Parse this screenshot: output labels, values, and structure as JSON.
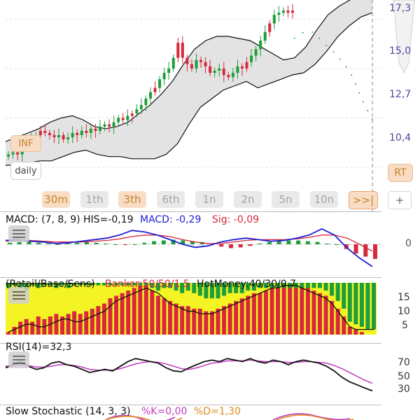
{
  "price_axis": {
    "ticks": [
      "17,3",
      "15,0",
      "12,7",
      "10,4"
    ]
  },
  "side_buttons": {
    "inf": "INF",
    "daily": "daily",
    "rt": "RT"
  },
  "periods": [
    {
      "label": "30m",
      "active": true
    },
    {
      "label": "1th",
      "active": false
    },
    {
      "label": "3th",
      "active": true
    },
    {
      "label": "6th",
      "active": false
    },
    {
      "label": "1n",
      "active": false
    },
    {
      "label": "2n",
      "active": false
    },
    {
      "label": "5n",
      "active": false
    },
    {
      "label": "10n",
      "active": false
    },
    {
      "label": ">>|",
      "active": true
    },
    {
      "label": "+",
      "active": false
    }
  ],
  "macd": {
    "label": "MACD: (7, 8, 9) HIS=-0,19",
    "macd_value": "MACD: -0,29",
    "sig_value": "Sig: -0,09",
    "zero_label": "0"
  },
  "money": {
    "label_a": "(Retail/Base/Sens)",
    "label_b": "Banker:50/50/1.5",
    "label_c": "HotMoney:40/30/0.7",
    "ticks": [
      "15",
      "10",
      "5"
    ]
  },
  "rsi": {
    "label": "RSI(14)=32,3",
    "ticks": [
      "70",
      "50",
      "30"
    ]
  },
  "stoch": {
    "label": "Slow Stochastic (14, 3, 3)",
    "k_value": "%K=0,00",
    "d_value": "%D=1,30"
  },
  "colors": {
    "up": "#1e9e3a",
    "down": "#d8283c",
    "band_fill": "#e3e3e3",
    "macd_line": "#1c1cd6",
    "signal_line": "#d8283c",
    "money_bg": "#f4f424",
    "rsi_line": "#111111",
    "rsi_ma": "#c13ac1",
    "axis_text": "#4a4a9e"
  },
  "chart_data": [
    {
      "type": "candlestick",
      "title": "",
      "ylim": [
        9.0,
        17.8
      ],
      "ticks": [
        17.3,
        15.0,
        12.7,
        10.4
      ],
      "closes": [
        11.0,
        11.1,
        11.0,
        11.3,
        11.5,
        11.7,
        11.9,
        12.1,
        12.0,
        11.9,
        11.8,
        11.9,
        11.7,
        11.8,
        12.0,
        11.9,
        12.1,
        12.0,
        12.2,
        12.1,
        12.3,
        12.4,
        12.3,
        12.5,
        12.7,
        12.6,
        12.8,
        12.9,
        13.1,
        13.3,
        13.6,
        13.9,
        14.1,
        14.5,
        14.8,
        15.0,
        15.5,
        16.2,
        15.5,
        15.2,
        15.0,
        15.4,
        15.3,
        15.1,
        14.8,
        14.9,
        15.0,
        14.7,
        14.6,
        14.8,
        15.1,
        15.0,
        15.3,
        15.6,
        15.9,
        16.3,
        16.7,
        17.1,
        17.5,
        17.6,
        17.7,
        17.6,
        17.7
      ],
      "upper_band": [
        11.6,
        11.8,
        12.0,
        12.2,
        12.5,
        12.7,
        12.8,
        12.6,
        12.3,
        12.2,
        12.3,
        12.5,
        12.9,
        13.3,
        13.8,
        14.4,
        15.2,
        15.9,
        16.3,
        16.5,
        16.5,
        16.4,
        16.3,
        16.0,
        15.7,
        15.4,
        15.5,
        16.0,
        16.8,
        17.5,
        17.9,
        18.2,
        18.5,
        18.8
      ],
      "lower_band": [
        10.5,
        10.5,
        10.6,
        10.7,
        10.7,
        10.9,
        11.1,
        11.2,
        11.0,
        10.9,
        10.9,
        10.8,
        10.8,
        10.8,
        11.0,
        11.5,
        12.4,
        13.2,
        13.6,
        14.0,
        14.2,
        14.4,
        14.1,
        14.3,
        14.5,
        14.7,
        14.8,
        15.2,
        15.8,
        16.5,
        17.0,
        17.4,
        17.6
      ],
      "projection": [
        16.4,
        16.7,
        16.7,
        16.2,
        15.8,
        15.3,
        14.6,
        13.5,
        12.6
      ]
    },
    {
      "type": "bar+line",
      "title": "MACD: (7, 8, 9) HIS=-0,19",
      "histogram": [
        0.02,
        0.03,
        0.04,
        0.02,
        0.01,
        0.0,
        0.01,
        0.02,
        0.03,
        0.02,
        0.01,
        0.0,
        -0.01,
        0.0,
        0.02,
        0.04,
        0.05,
        0.06,
        0.05,
        0.04,
        0.03,
        -0.01,
        -0.03,
        -0.05,
        -0.04,
        -0.02,
        0.01,
        0.03,
        0.04,
        0.05,
        0.05,
        0.04,
        0.03,
        0.01,
        0.0,
        -0.06,
        -0.12,
        -0.16,
        -0.19
      ],
      "macd": [
        0.05,
        0.06,
        0.04,
        0.03,
        0.01,
        0.02,
        0.04,
        0.06,
        0.08,
        0.12,
        0.18,
        0.16,
        0.12,
        0.06,
        0.0,
        -0.04,
        -0.02,
        0.03,
        0.06,
        0.08,
        0.06,
        0.04,
        0.05,
        0.08,
        0.12,
        0.2,
        0.12,
        -0.05,
        -0.18,
        -0.29
      ],
      "signal": [
        0.04,
        0.05,
        0.05,
        0.04,
        0.03,
        0.03,
        0.03,
        0.04,
        0.05,
        0.07,
        0.1,
        0.12,
        0.12,
        0.1,
        0.06,
        0.03,
        0.01,
        0.01,
        0.03,
        0.05,
        0.06,
        0.06,
        0.06,
        0.07,
        0.09,
        0.12,
        0.12,
        0.08,
        0.0,
        -0.09
      ],
      "zero_line": 0
    },
    {
      "type": "bar+line",
      "title": "(Retail/Base/Sens) Banker:50/50/1.5 HotMoney:40/30/0.7",
      "ylim": [
        0,
        20
      ],
      "ticks": [
        15,
        10,
        5
      ],
      "banker": [
        1,
        3,
        5,
        6,
        5,
        7,
        6,
        7,
        8,
        7,
        8,
        9,
        8,
        9,
        10,
        11,
        12,
        14,
        15,
        16,
        17,
        18,
        19,
        19,
        17,
        15,
        14,
        13,
        12,
        11,
        11,
        10,
        10,
        9,
        9,
        10,
        11,
        12,
        13,
        14,
        15,
        16,
        16,
        17,
        18,
        18,
        19,
        20,
        19,
        19,
        18,
        17,
        16,
        15,
        13,
        10,
        7,
        3,
        2,
        1,
        0,
        0
      ],
      "hot_money": [
        1,
        2,
        3,
        4,
        4,
        3,
        3,
        4,
        5,
        6,
        6,
        5,
        5,
        6,
        7,
        8,
        9,
        11,
        13,
        14,
        15,
        16,
        17,
        18,
        17,
        16,
        14,
        12,
        11,
        10,
        9,
        9,
        8,
        8,
        8,
        9,
        10,
        11,
        12,
        13,
        14,
        15,
        16,
        17,
        18,
        18,
        19,
        19,
        19,
        18,
        17,
        16,
        15,
        14,
        12,
        9,
        6,
        3,
        2,
        2,
        2,
        2
      ],
      "retail_top": [
        2,
        1,
        2,
        3,
        1,
        2,
        1,
        1,
        2,
        1,
        2,
        1,
        1,
        1,
        1,
        1,
        1,
        1,
        1,
        1,
        1,
        1,
        1,
        1,
        2,
        3,
        2,
        2,
        3,
        4,
        3,
        4,
        5,
        6,
        6,
        6,
        5,
        4,
        4,
        4,
        3,
        3,
        2,
        2,
        2,
        2,
        2,
        2,
        2,
        2,
        2,
        2,
        2,
        3,
        5,
        7,
        10,
        15,
        16,
        17,
        18,
        18
      ]
    },
    {
      "type": "line",
      "title": "RSI(14)=32,3",
      "ylim": [
        20,
        85
      ],
      "ticks": [
        70,
        50,
        30
      ],
      "rsi": [
        62,
        66,
        70,
        64,
        60,
        62,
        68,
        70,
        66,
        64,
        60,
        56,
        58,
        60,
        58,
        64,
        70,
        74,
        72,
        70,
        68,
        62,
        58,
        57,
        62,
        66,
        70,
        72,
        70,
        74,
        72,
        70,
        74,
        70,
        68,
        72,
        70,
        66,
        70,
        72,
        70,
        68,
        64,
        58,
        50,
        44,
        40,
        36,
        32.3
      ],
      "rsi_ma": [
        64,
        65,
        66,
        65,
        63,
        63,
        64,
        66,
        66,
        65,
        63,
        60,
        59,
        59,
        59,
        61,
        64,
        67,
        69,
        70,
        69,
        67,
        64,
        61,
        60,
        62,
        65,
        68,
        69,
        71,
        71,
        71,
        72,
        71,
        70,
        70,
        70,
        69,
        69,
        70,
        70,
        69,
        68,
        65,
        61,
        56,
        51,
        46,
        42
      ]
    },
    {
      "type": "line",
      "title": "Slow Stochastic (14, 3, 3)",
      "k": 0.0,
      "d": 1.3
    }
  ]
}
